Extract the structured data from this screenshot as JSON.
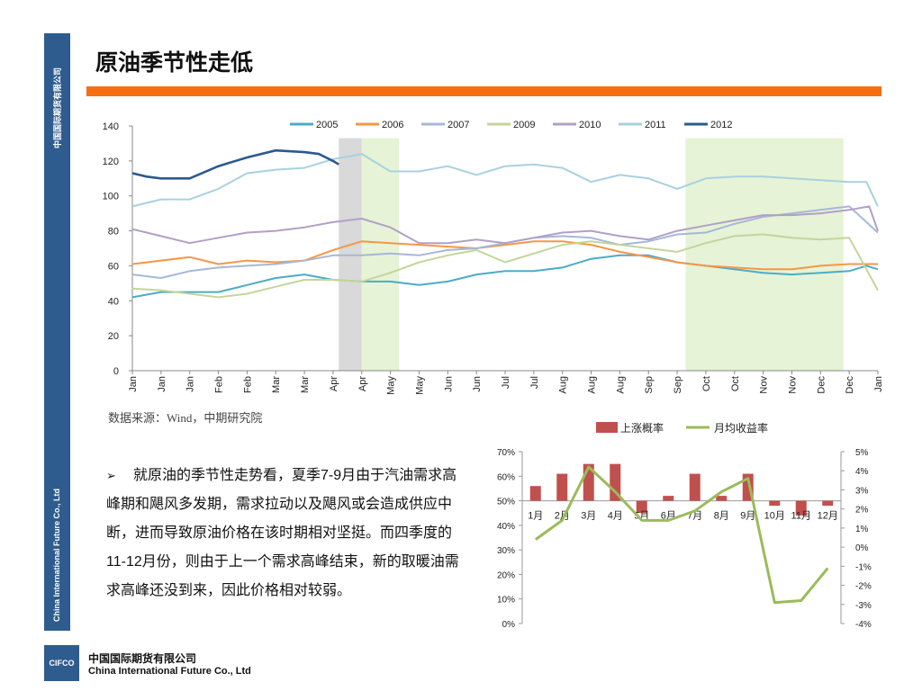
{
  "header": {
    "title": "原油季节性走低"
  },
  "sidebar": {
    "top_text": "中国国际期货有限公司",
    "bottom_text": "China International Future Co., Ltd"
  },
  "source_note": "数据来源：Wind，中期研究院",
  "bullet": {
    "marker": "➢",
    "text": "就原油的季节性走势看，夏季7-9月由于汽油需求高峰期和飓风多发期，需求拉动以及飓风或会造成供应中断，进而导致原油价格在该时期相对坚挺。而四季度的11-12月份，则由于上一个需求高峰结束，新的取暖油需求高峰还没到来，因此价格相对较弱。"
  },
  "footer": {
    "logo_text": "CIFCO",
    "company_cn": "中国国际期货有限公司",
    "company_en": "China International Future Co., Ltd"
  },
  "chart_data": [
    {
      "type": "line",
      "ylim": [
        0,
        140
      ],
      "yticks": [
        0,
        20,
        40,
        60,
        80,
        100,
        120,
        140
      ],
      "x_tick_labels": [
        "Jan",
        "Jan",
        "Jan",
        "Feb",
        "Feb",
        "Mar",
        "Mar",
        "Apr",
        "Apr",
        "May",
        "May",
        "Jun",
        "Jun",
        "Jul",
        "Jul",
        "Aug",
        "Aug",
        "Aug",
        "Sep",
        "Sep",
        "Oct",
        "Oct",
        "Nov",
        "Nov",
        "Dec",
        "Dec",
        "Jan"
      ],
      "legend_position": "top",
      "shaded_regions": [
        {
          "from_tick": 7.2,
          "to_tick": 8.0,
          "color": "#d9d9d9"
        },
        {
          "from_tick": 8.0,
          "to_tick": 9.3,
          "color": "#e6f3d6"
        },
        {
          "from_tick": 19.3,
          "to_tick": 24.8,
          "color": "#e6f3d6"
        }
      ],
      "series": [
        {
          "name": "2005",
          "color": "#4bacc6",
          "x": [
            0,
            1,
            2,
            3,
            4,
            5,
            6,
            7,
            8,
            9,
            10,
            11,
            12,
            13,
            14,
            15,
            16,
            17,
            18,
            19,
            20,
            21,
            22,
            23,
            24,
            25,
            25.6,
            26
          ],
          "values": [
            42,
            45,
            45,
            45,
            49,
            53,
            55,
            52,
            51,
            51,
            49,
            51,
            55,
            57,
            57,
            59,
            64,
            66,
            66,
            62,
            60,
            58,
            56,
            55,
            56,
            57,
            60,
            58
          ]
        },
        {
          "name": "2006",
          "color": "#f79646",
          "x": [
            0,
            1,
            2,
            3,
            4,
            5,
            6,
            7,
            8,
            9,
            10,
            11,
            12,
            13,
            14,
            15,
            16,
            17,
            18,
            19,
            20,
            21,
            22,
            23,
            24,
            25,
            26
          ],
          "values": [
            61,
            63,
            65,
            61,
            63,
            62,
            63,
            69,
            74,
            73,
            72,
            71,
            70,
            72,
            74,
            74,
            72,
            68,
            65,
            62,
            60,
            59,
            58,
            58,
            60,
            61,
            61
          ]
        },
        {
          "name": "2007",
          "color": "#a5b8d6",
          "x": [
            0,
            1,
            2,
            3,
            4,
            5,
            6,
            7,
            8,
            9,
            10,
            11,
            12,
            13,
            14,
            15,
            16,
            17,
            18,
            19,
            20,
            21,
            22,
            23,
            24,
            25,
            26
          ],
          "values": [
            55,
            53,
            57,
            59,
            60,
            61,
            63,
            66,
            66,
            67,
            66,
            69,
            70,
            73,
            76,
            77,
            76,
            72,
            74,
            78,
            79,
            84,
            88,
            90,
            92,
            94,
            79
          ]
        },
        {
          "name": "2009",
          "color": "#c3d69b",
          "x": [
            0,
            1,
            2,
            3,
            4,
            5,
            6,
            7,
            8,
            9,
            10,
            11,
            12,
            13,
            14,
            15,
            16,
            17,
            18,
            19,
            20,
            21,
            22,
            23,
            24,
            25,
            26
          ],
          "values": [
            47,
            46,
            44,
            42,
            44,
            48,
            52,
            52,
            51,
            56,
            62,
            66,
            69,
            62,
            67,
            72,
            74,
            72,
            70,
            68,
            73,
            77,
            78,
            76,
            75,
            76,
            46
          ]
        },
        {
          "name": "2010",
          "color": "#b1a0c7",
          "x": [
            0,
            1,
            2,
            3,
            4,
            5,
            6,
            7,
            8,
            9,
            10,
            11,
            12,
            13,
            14,
            15,
            16,
            17,
            18,
            19,
            20,
            21,
            22,
            23,
            24,
            25,
            25.7,
            26
          ],
          "values": [
            81,
            77,
            73,
            76,
            79,
            80,
            82,
            85,
            87,
            82,
            73,
            73,
            75,
            73,
            76,
            79,
            80,
            77,
            75,
            80,
            83,
            86,
            89,
            89,
            90,
            92,
            94,
            80
          ]
        },
        {
          "name": "2011",
          "color": "#a8d1e0",
          "x": [
            0,
            1,
            2,
            3,
            4,
            5,
            6,
            7,
            7.7,
            8,
            9,
            10,
            11,
            12,
            13,
            14,
            15,
            16,
            17,
            18,
            19,
            20,
            21,
            22,
            23,
            24,
            25,
            25.6,
            26
          ],
          "values": [
            94,
            98,
            98,
            104,
            113,
            115,
            116,
            121,
            123,
            124,
            114,
            114,
            117,
            112,
            117,
            118,
            116,
            108,
            112,
            110,
            104,
            110,
            111,
            111,
            110,
            109,
            108,
            108,
            94
          ]
        },
        {
          "name": "2012",
          "color": "#2d5a8e",
          "x": [
            0,
            0.5,
            1,
            1.5,
            2,
            3,
            4,
            5,
            6,
            6.5,
            7,
            7.2
          ],
          "values": [
            113,
            111,
            110,
            110,
            110,
            117,
            122,
            126,
            125,
            124,
            120,
            118
          ]
        }
      ]
    },
    {
      "type": "bar",
      "categories": [
        "1月",
        "2月",
        "3月",
        "4月",
        "5月",
        "6月",
        "7月",
        "8月",
        "9月",
        "10月",
        "11月",
        "12月"
      ],
      "ylim_left": [
        0,
        70
      ],
      "yticks_left": [
        "0%",
        "10%",
        "20%",
        "30%",
        "40%",
        "50%",
        "60%",
        "70%"
      ],
      "ylim_right": [
        -4,
        5
      ],
      "yticks_right": [
        "-4%",
        "-3%",
        "-2%",
        "-1%",
        "0%",
        "1%",
        "2%",
        "3%",
        "4%",
        "5%"
      ],
      "legend_position": "top",
      "series": [
        {
          "name": "上涨概率",
          "type": "bar",
          "color": "#c0504d",
          "axis": "left",
          "values": [
            56,
            61,
            65,
            65,
            45,
            52,
            61,
            52,
            61,
            48,
            44,
            48
          ]
        },
        {
          "name": "月均收益率",
          "type": "line",
          "color": "#9bbb59",
          "axis": "right",
          "values": [
            0.4,
            1.4,
            4.2,
            2.9,
            1.4,
            1.4,
            1.9,
            2.9,
            3.6,
            -2.9,
            -2.8,
            -1.1
          ]
        }
      ]
    }
  ]
}
